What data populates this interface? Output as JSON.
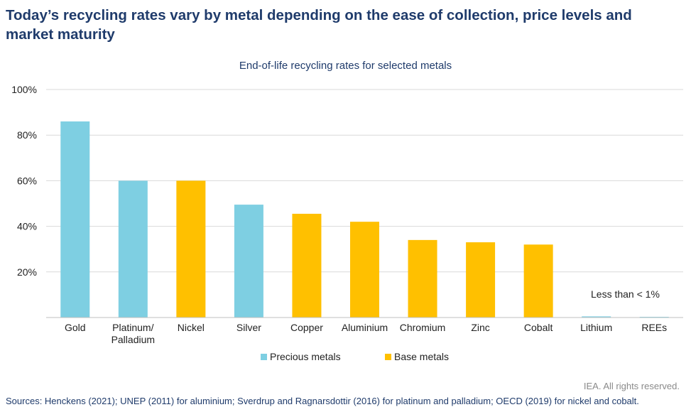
{
  "headline": "Today’s recycling rates vary by metal depending on the ease of collection, price levels and market maturity",
  "copyright": "IEA. All rights reserved.",
  "sources": "Sources: Henckens (2021); UNEP (2011) for aluminium; Sverdrup and Ragnarsdottir (2016) for platinum and palladium; OECD (2019) for nickel and cobalt.",
  "colors": {
    "precious": "#7ecfe2",
    "base": "#ffc000",
    "grid": "#d9d9d9",
    "axis_text": "#222222"
  },
  "chart_data": {
    "type": "bar",
    "title": "End-of-life recycling rates for selected metals",
    "xlabel": "",
    "ylabel": "",
    "ylim": [
      0,
      100
    ],
    "yticks": [
      20,
      40,
      60,
      80,
      100
    ],
    "ytick_labels": [
      "20%",
      "40%",
      "60%",
      "80%",
      "100%"
    ],
    "grid": true,
    "legend_position": "bottom",
    "categories": [
      "Gold",
      "Platinum/\nPalladium",
      "Nickel",
      "Silver",
      "Copper",
      "Aluminium",
      "Chromium",
      "Zinc",
      "Cobalt",
      "Lithium",
      "REEs"
    ],
    "values": [
      86,
      60,
      60,
      49.5,
      45.5,
      42,
      34,
      33,
      32,
      0.5,
      0.3
    ],
    "groups": [
      "Precious metals",
      "Precious metals",
      "Base metals",
      "Precious metals",
      "Base metals",
      "Base metals",
      "Base metals",
      "Base metals",
      "Base metals",
      "Precious metals",
      "Precious metals"
    ],
    "legend": [
      "Precious metals",
      "Base metals"
    ],
    "annotation": "Less than < 1%"
  }
}
